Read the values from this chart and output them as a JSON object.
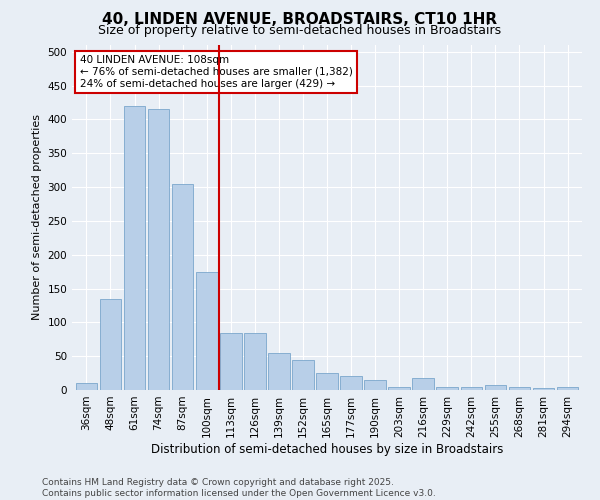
{
  "title1": "40, LINDEN AVENUE, BROADSTAIRS, CT10 1HR",
  "title2": "Size of property relative to semi-detached houses in Broadstairs",
  "xlabel": "Distribution of semi-detached houses by size in Broadstairs",
  "ylabel": "Number of semi-detached properties",
  "categories": [
    "36sqm",
    "48sqm",
    "61sqm",
    "74sqm",
    "87sqm",
    "100sqm",
    "113sqm",
    "126sqm",
    "139sqm",
    "152sqm",
    "165sqm",
    "177sqm",
    "190sqm",
    "203sqm",
    "216sqm",
    "229sqm",
    "242sqm",
    "255sqm",
    "268sqm",
    "281sqm",
    "294sqm"
  ],
  "values": [
    10,
    135,
    420,
    415,
    305,
    175,
    85,
    85,
    55,
    45,
    25,
    20,
    15,
    5,
    18,
    5,
    5,
    8,
    5,
    3,
    5
  ],
  "bar_color": "#b8cfe8",
  "bar_edge_color": "#7ba7cc",
  "vline_x": 5.5,
  "vline_color": "#cc0000",
  "annotation_title": "40 LINDEN AVENUE: 108sqm",
  "annotation_line1": "← 76% of semi-detached houses are smaller (1,382)",
  "annotation_line2": "24% of semi-detached houses are larger (429) →",
  "annotation_box_color": "#ffffff",
  "annotation_box_edge": "#cc0000",
  "footnote1": "Contains HM Land Registry data © Crown copyright and database right 2025.",
  "footnote2": "Contains public sector information licensed under the Open Government Licence v3.0.",
  "ylim": [
    0,
    510
  ],
  "yticks": [
    0,
    50,
    100,
    150,
    200,
    250,
    300,
    350,
    400,
    450,
    500
  ],
  "background_color": "#e8eef5",
  "grid_color": "#ffffff",
  "title1_fontsize": 11,
  "title2_fontsize": 9,
  "xlabel_fontsize": 8.5,
  "ylabel_fontsize": 8,
  "tick_fontsize": 7.5,
  "annotation_fontsize": 7.5,
  "footnote_fontsize": 6.5
}
